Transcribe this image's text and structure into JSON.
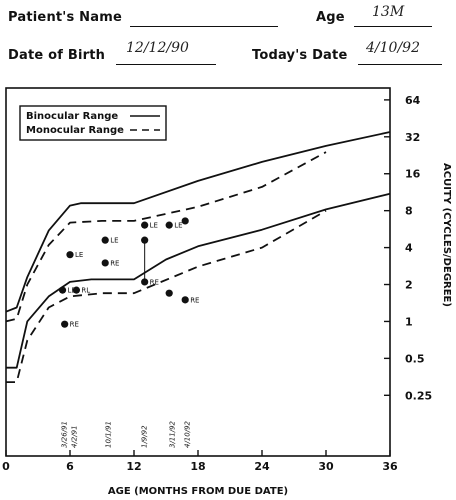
{
  "form": {
    "patient_name_label": "Patient's Name",
    "patient_name_value": "",
    "age_label": "Age",
    "age_value": "13M",
    "dob_label": "Date of Birth",
    "dob_value": "12/12/90",
    "today_label": "Today's Date",
    "today_value": "4/10/92"
  },
  "chart_data": {
    "type": "line",
    "title": "",
    "xlabel": "AGE (MONTHS FROM DUE DATE)",
    "ylabel": "ACUITY (CYCLES/DEGREE)",
    "xlim": [
      0,
      36
    ],
    "ylim": [
      0.08,
      80
    ],
    "y_scale": "log",
    "x_ticks": [
      0,
      6,
      12,
      18,
      24,
      30,
      36
    ],
    "y_ticks": [
      {
        "value": 64,
        "label": "64"
      },
      {
        "value": 32,
        "label": "32"
      },
      {
        "value": 16,
        "label": "16"
      },
      {
        "value": 8,
        "label": "8"
      },
      {
        "value": 4,
        "label": "4"
      },
      {
        "value": 2,
        "label": "2"
      },
      {
        "value": 1,
        "label": "1"
      },
      {
        "value": 0.5,
        "label": "0.5"
      },
      {
        "value": 0.25,
        "label": "0.25"
      }
    ],
    "grid": false,
    "legend_position": "top-left",
    "legend": [
      {
        "label": "Binocular Range",
        "style": "solid"
      },
      {
        "label": "Monocular Range",
        "style": "dashed"
      }
    ],
    "series": [
      {
        "name": "Binocular Range",
        "style": "solid",
        "points": [
          [
            0,
            1.2
          ],
          [
            1,
            1.3
          ],
          [
            2,
            2.3
          ],
          [
            4,
            5.5
          ],
          [
            6,
            8.8
          ],
          [
            7,
            9.2
          ],
          [
            12,
            9.2
          ],
          [
            18,
            14
          ],
          [
            24,
            20
          ],
          [
            30,
            27
          ],
          [
            36,
            35
          ]
        ]
      },
      {
        "name": "Binocular Range",
        "style": "solid",
        "points": [
          [
            0,
            0.42
          ],
          [
            1,
            0.42
          ],
          [
            2,
            1
          ],
          [
            4,
            1.6
          ],
          [
            6,
            2.1
          ],
          [
            8,
            2.2
          ],
          [
            12,
            2.2
          ],
          [
            15,
            3.2
          ],
          [
            18,
            4.1
          ],
          [
            24,
            5.6
          ],
          [
            30,
            8.2
          ],
          [
            36,
            11
          ]
        ]
      },
      {
        "name": "Monocular Range",
        "style": "dashed",
        "points": [
          [
            0,
            1
          ],
          [
            1,
            1.05
          ],
          [
            2,
            2
          ],
          [
            4,
            4.2
          ],
          [
            6,
            6.4
          ],
          [
            9,
            6.6
          ],
          [
            12,
            6.6
          ],
          [
            18,
            8.6
          ],
          [
            24,
            12.5
          ],
          [
            30,
            24
          ]
        ]
      },
      {
        "name": "Monocular Range",
        "style": "dashed",
        "points": [
          [
            0,
            0.32
          ],
          [
            1,
            0.32
          ],
          [
            2,
            0.7
          ],
          [
            4,
            1.3
          ],
          [
            6,
            1.6
          ],
          [
            9,
            1.7
          ],
          [
            12,
            1.7
          ],
          [
            18,
            2.8
          ],
          [
            24,
            4
          ],
          [
            30,
            8
          ]
        ]
      }
    ],
    "points": [
      {
        "x": 6,
        "y": 3.5,
        "label": "LE"
      },
      {
        "x": 9.3,
        "y": 4.6,
        "label": "LE"
      },
      {
        "x": 9.3,
        "y": 3,
        "label": "RE"
      },
      {
        "x": 5.3,
        "y": 1.8,
        "label": "LE"
      },
      {
        "x": 6.6,
        "y": 1.8,
        "label": "RL"
      },
      {
        "x": 5.5,
        "y": 0.95,
        "label": "RE"
      },
      {
        "x": 13,
        "y": 6.1,
        "label": "LE"
      },
      {
        "x": 13,
        "y": 4.6,
        "label": ""
      },
      {
        "x": 13,
        "y": 2.1,
        "label": "RE"
      },
      {
        "x": 15.3,
        "y": 6.1,
        "label": "LE"
      },
      {
        "x": 16.8,
        "y": 6.6,
        "label": ""
      },
      {
        "x": 15.3,
        "y": 1.7,
        "label": ""
      },
      {
        "x": 16.8,
        "y": 1.5,
        "label": "RE"
      }
    ],
    "date_annotations": [
      {
        "x": 5.5,
        "label": "3/26/91"
      },
      {
        "x": 6.4,
        "label": "4/2/91"
      },
      {
        "x": 9.6,
        "label": "10/1/91"
      },
      {
        "x": 13,
        "label": "1/9/92"
      },
      {
        "x": 15.6,
        "label": "3/11/92"
      },
      {
        "x": 17,
        "label": "4/10/92"
      }
    ]
  }
}
